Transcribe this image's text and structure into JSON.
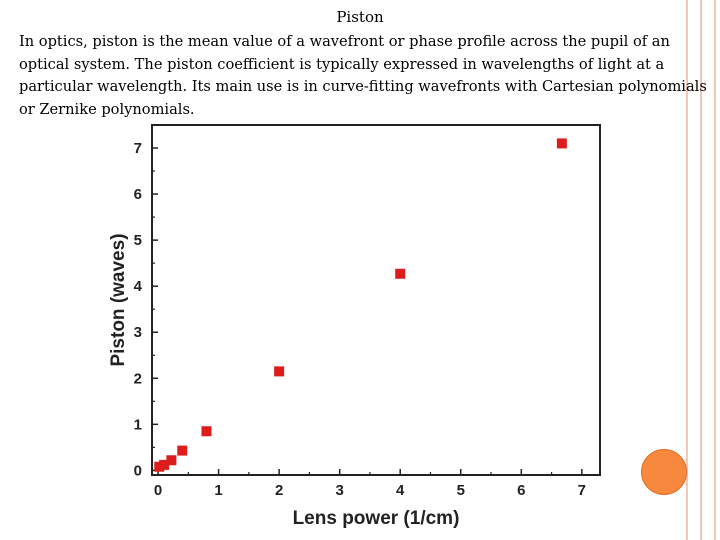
{
  "slide": {
    "title": "Piston",
    "body": "In optics, piston is the mean value of a wavefront or phase profile across the pupil of an optical system. The piston coefficient is typically expressed in wavelengths of light at a particular wavelength. Its main use is in curve-fitting wavefronts with Cartesian polynomials or Zernike polynomials."
  },
  "colors": {
    "marker": "#dd1c1c",
    "accent_circle": "#f7893e",
    "border": "#f3c8b6"
  },
  "chart_data": {
    "type": "scatter",
    "xlabel": "Lens power (1/cm)",
    "ylabel": "Piston (waves)",
    "xlim": [
      -0.1,
      7.3
    ],
    "ylim": [
      -0.1,
      7.5
    ],
    "xticks": [
      "0",
      "1",
      "2",
      "3",
      "4",
      "5",
      "6",
      "7"
    ],
    "yticks": [
      "0",
      "1",
      "2",
      "3",
      "4",
      "5",
      "6",
      "7"
    ],
    "grid": false,
    "series": [
      {
        "x": [
          0.02,
          0.1,
          0.22,
          0.4,
          0.8,
          2.0,
          4.0,
          6.67
        ],
        "y": [
          0.08,
          0.12,
          0.22,
          0.43,
          0.85,
          2.15,
          4.27,
          7.1
        ]
      }
    ]
  }
}
